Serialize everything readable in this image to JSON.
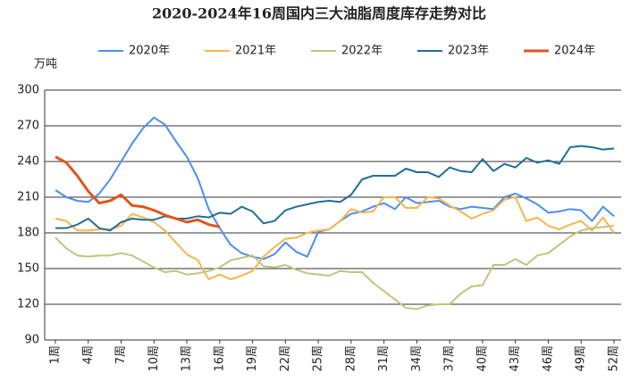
{
  "chart_data": {
    "type": "line",
    "title": "2020-2024年16周国内三大油脂周度库存走势对比",
    "y_label": "万吨",
    "categories": [
      "1周",
      null,
      null,
      "4周",
      null,
      null,
      "7周",
      null,
      null,
      "10周",
      null,
      null,
      "13周",
      null,
      null,
      "16周",
      null,
      null,
      "19周",
      null,
      null,
      "22周",
      null,
      null,
      "25周",
      null,
      null,
      "28周",
      null,
      null,
      "31周",
      null,
      null,
      "34周",
      null,
      null,
      "37周",
      null,
      null,
      "40周",
      null,
      null,
      "43周",
      null,
      null,
      "46周",
      null,
      null,
      "49周",
      null,
      null,
      "52周"
    ],
    "ylim": [
      90,
      300
    ],
    "yticks": [
      90,
      120,
      150,
      180,
      210,
      240,
      270,
      300
    ],
    "grid": true,
    "series": [
      {
        "name": "2020年",
        "color": "#4a8ff0",
        "values": [
          216,
          210,
          207,
          206,
          213,
          225,
          240,
          255,
          268,
          277,
          271,
          257,
          244,
          226,
          200,
          184,
          170,
          163,
          160,
          158,
          162,
          172,
          164,
          160,
          181,
          183,
          190,
          196,
          198,
          202,
          205,
          200,
          210,
          205,
          206,
          207,
          202,
          200,
          202,
          201,
          200,
          210,
          213,
          209,
          204,
          197,
          198,
          200,
          199,
          190,
          202,
          194
        ]
      },
      {
        "name": "2021年",
        "color": "#f7b54c",
        "values": [
          192,
          190,
          182,
          182,
          183,
          183,
          186,
          196,
          193,
          189,
          182,
          172,
          162,
          157,
          141,
          145,
          141,
          144,
          148,
          160,
          168,
          175,
          176,
          180,
          182,
          183,
          190,
          200,
          197,
          198,
          210,
          210,
          201,
          201,
          210,
          209,
          203,
          198,
          192,
          196,
          199,
          208,
          210,
          190,
          193,
          186,
          183,
          187,
          190,
          182,
          193,
          180
        ]
      },
      {
        "name": "2022年",
        "color": "#c4c27c",
        "values": [
          176,
          167,
          161,
          160,
          161,
          161,
          163,
          161,
          156,
          151,
          147,
          148,
          145,
          146,
          148,
          151,
          157,
          159,
          161,
          152,
          151,
          153,
          149,
          146,
          145,
          144,
          148,
          147,
          147,
          138,
          131,
          124,
          117,
          116,
          119,
          120,
          120,
          129,
          135,
          136,
          153,
          153,
          158,
          153,
          161,
          163,
          170,
          177,
          182,
          184,
          185,
          186
        ]
      },
      {
        "name": "2023年",
        "color": "#1f6e98",
        "values": [
          184,
          184,
          187,
          192,
          184,
          182,
          189,
          192,
          191,
          191,
          194,
          192,
          192,
          194,
          193,
          197,
          196,
          202,
          198,
          188,
          190,
          199,
          202,
          204,
          206,
          207,
          206,
          212,
          225,
          228,
          228,
          228,
          234,
          231,
          231,
          227,
          235,
          232,
          231,
          242,
          232,
          238,
          235,
          243,
          239,
          241,
          238,
          252,
          253,
          252,
          250,
          251
        ]
      },
      {
        "name": "2024年",
        "color": "#e2541c",
        "values": [
          244,
          239,
          228,
          215,
          205,
          207,
          212,
          203,
          202,
          199,
          195,
          192,
          189,
          191,
          187,
          185,
          null,
          null,
          null,
          null,
          null,
          null,
          null,
          null,
          null,
          null,
          null,
          null,
          null,
          null,
          null,
          null,
          null,
          null,
          null,
          null,
          null,
          null,
          null,
          null,
          null,
          null,
          null,
          null,
          null,
          null,
          null,
          null,
          null,
          null,
          null,
          null
        ]
      }
    ]
  }
}
